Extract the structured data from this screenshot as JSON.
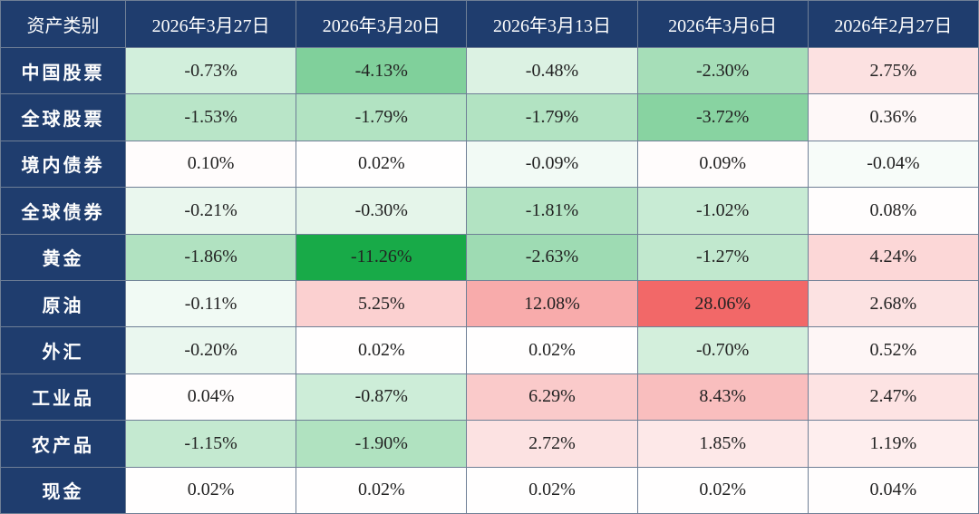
{
  "table": {
    "header": [
      "资产类别",
      "2026年3月27日",
      "2026年3月20日",
      "2026年3月13日",
      "2026年3月6日",
      "2026年2月27日"
    ],
    "rows": [
      [
        "中国股票",
        "-0.73%",
        "-4.13%",
        "-0.48%",
        "-2.30%",
        "2.75%"
      ],
      [
        "全球股票",
        "-1.53%",
        "-1.79%",
        "-1.79%",
        "-3.72%",
        "0.36%"
      ],
      [
        "境内债券",
        "0.10%",
        "0.02%",
        "-0.09%",
        "0.09%",
        "-0.04%"
      ],
      [
        "全球债券",
        "-0.21%",
        "-0.30%",
        "-1.81%",
        "-1.02%",
        "0.08%"
      ],
      [
        "黄金",
        "-1.86%",
        "-11.26%",
        "-2.63%",
        "-1.27%",
        "4.24%"
      ],
      [
        "原油",
        "-0.11%",
        "5.25%",
        "12.08%",
        "28.06%",
        "2.68%"
      ],
      [
        "外汇",
        "-0.20%",
        "0.02%",
        "0.02%",
        "-0.70%",
        "0.52%"
      ],
      [
        "工业品",
        "0.04%",
        "-0.87%",
        "6.29%",
        "8.43%",
        "2.47%"
      ],
      [
        "农产品",
        "-1.15%",
        "-1.90%",
        "2.72%",
        "1.85%",
        "1.19%"
      ],
      [
        "现金",
        "0.02%",
        "0.02%",
        "0.02%",
        "0.02%",
        "0.04%"
      ]
    ]
  }
}
